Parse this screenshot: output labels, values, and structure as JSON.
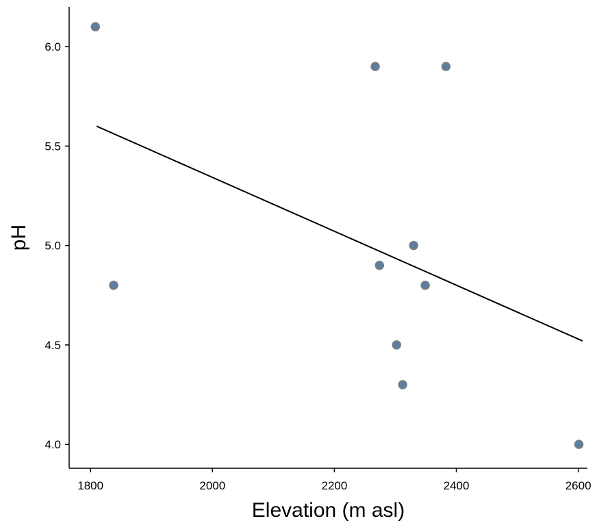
{
  "chart_data": {
    "type": "scatter",
    "title": "",
    "xlabel": "Elevation (m asl)",
    "ylabel": "pH",
    "xlim": [
      1765,
      2615
    ],
    "ylim": [
      3.88,
      6.2
    ],
    "x_ticks": [
      1800,
      2000,
      2200,
      2400,
      2600
    ],
    "x_tick_labels": [
      "1800",
      "2000",
      "2200",
      "2400",
      "2600"
    ],
    "y_ticks": [
      4.0,
      4.5,
      5.0,
      5.5,
      6.0
    ],
    "y_tick_labels": [
      "4.0",
      "4.5",
      "5.0",
      "5.5",
      "6.0"
    ],
    "grid": false,
    "series": [
      {
        "points": [
          {
            "x": 1808,
            "y": 6.1
          },
          {
            "x": 1838,
            "y": 4.8
          },
          {
            "x": 2267,
            "y": 5.9
          },
          {
            "x": 2274,
            "y": 4.9
          },
          {
            "x": 2302,
            "y": 4.5
          },
          {
            "x": 2312,
            "y": 4.3
          },
          {
            "x": 2330,
            "y": 5.0
          },
          {
            "x": 2349,
            "y": 4.8
          },
          {
            "x": 2383,
            "y": 5.9
          },
          {
            "x": 2601,
            "y": 4.0
          }
        ]
      }
    ],
    "trendline": {
      "type": "linear",
      "x": [
        1810,
        2607
      ],
      "y": [
        5.6,
        4.52
      ]
    },
    "colors": {
      "marker_fill": "#5d7e9e",
      "marker_edge": "#7d7d7d",
      "trendline": "#000000",
      "axis": "#000000"
    }
  }
}
